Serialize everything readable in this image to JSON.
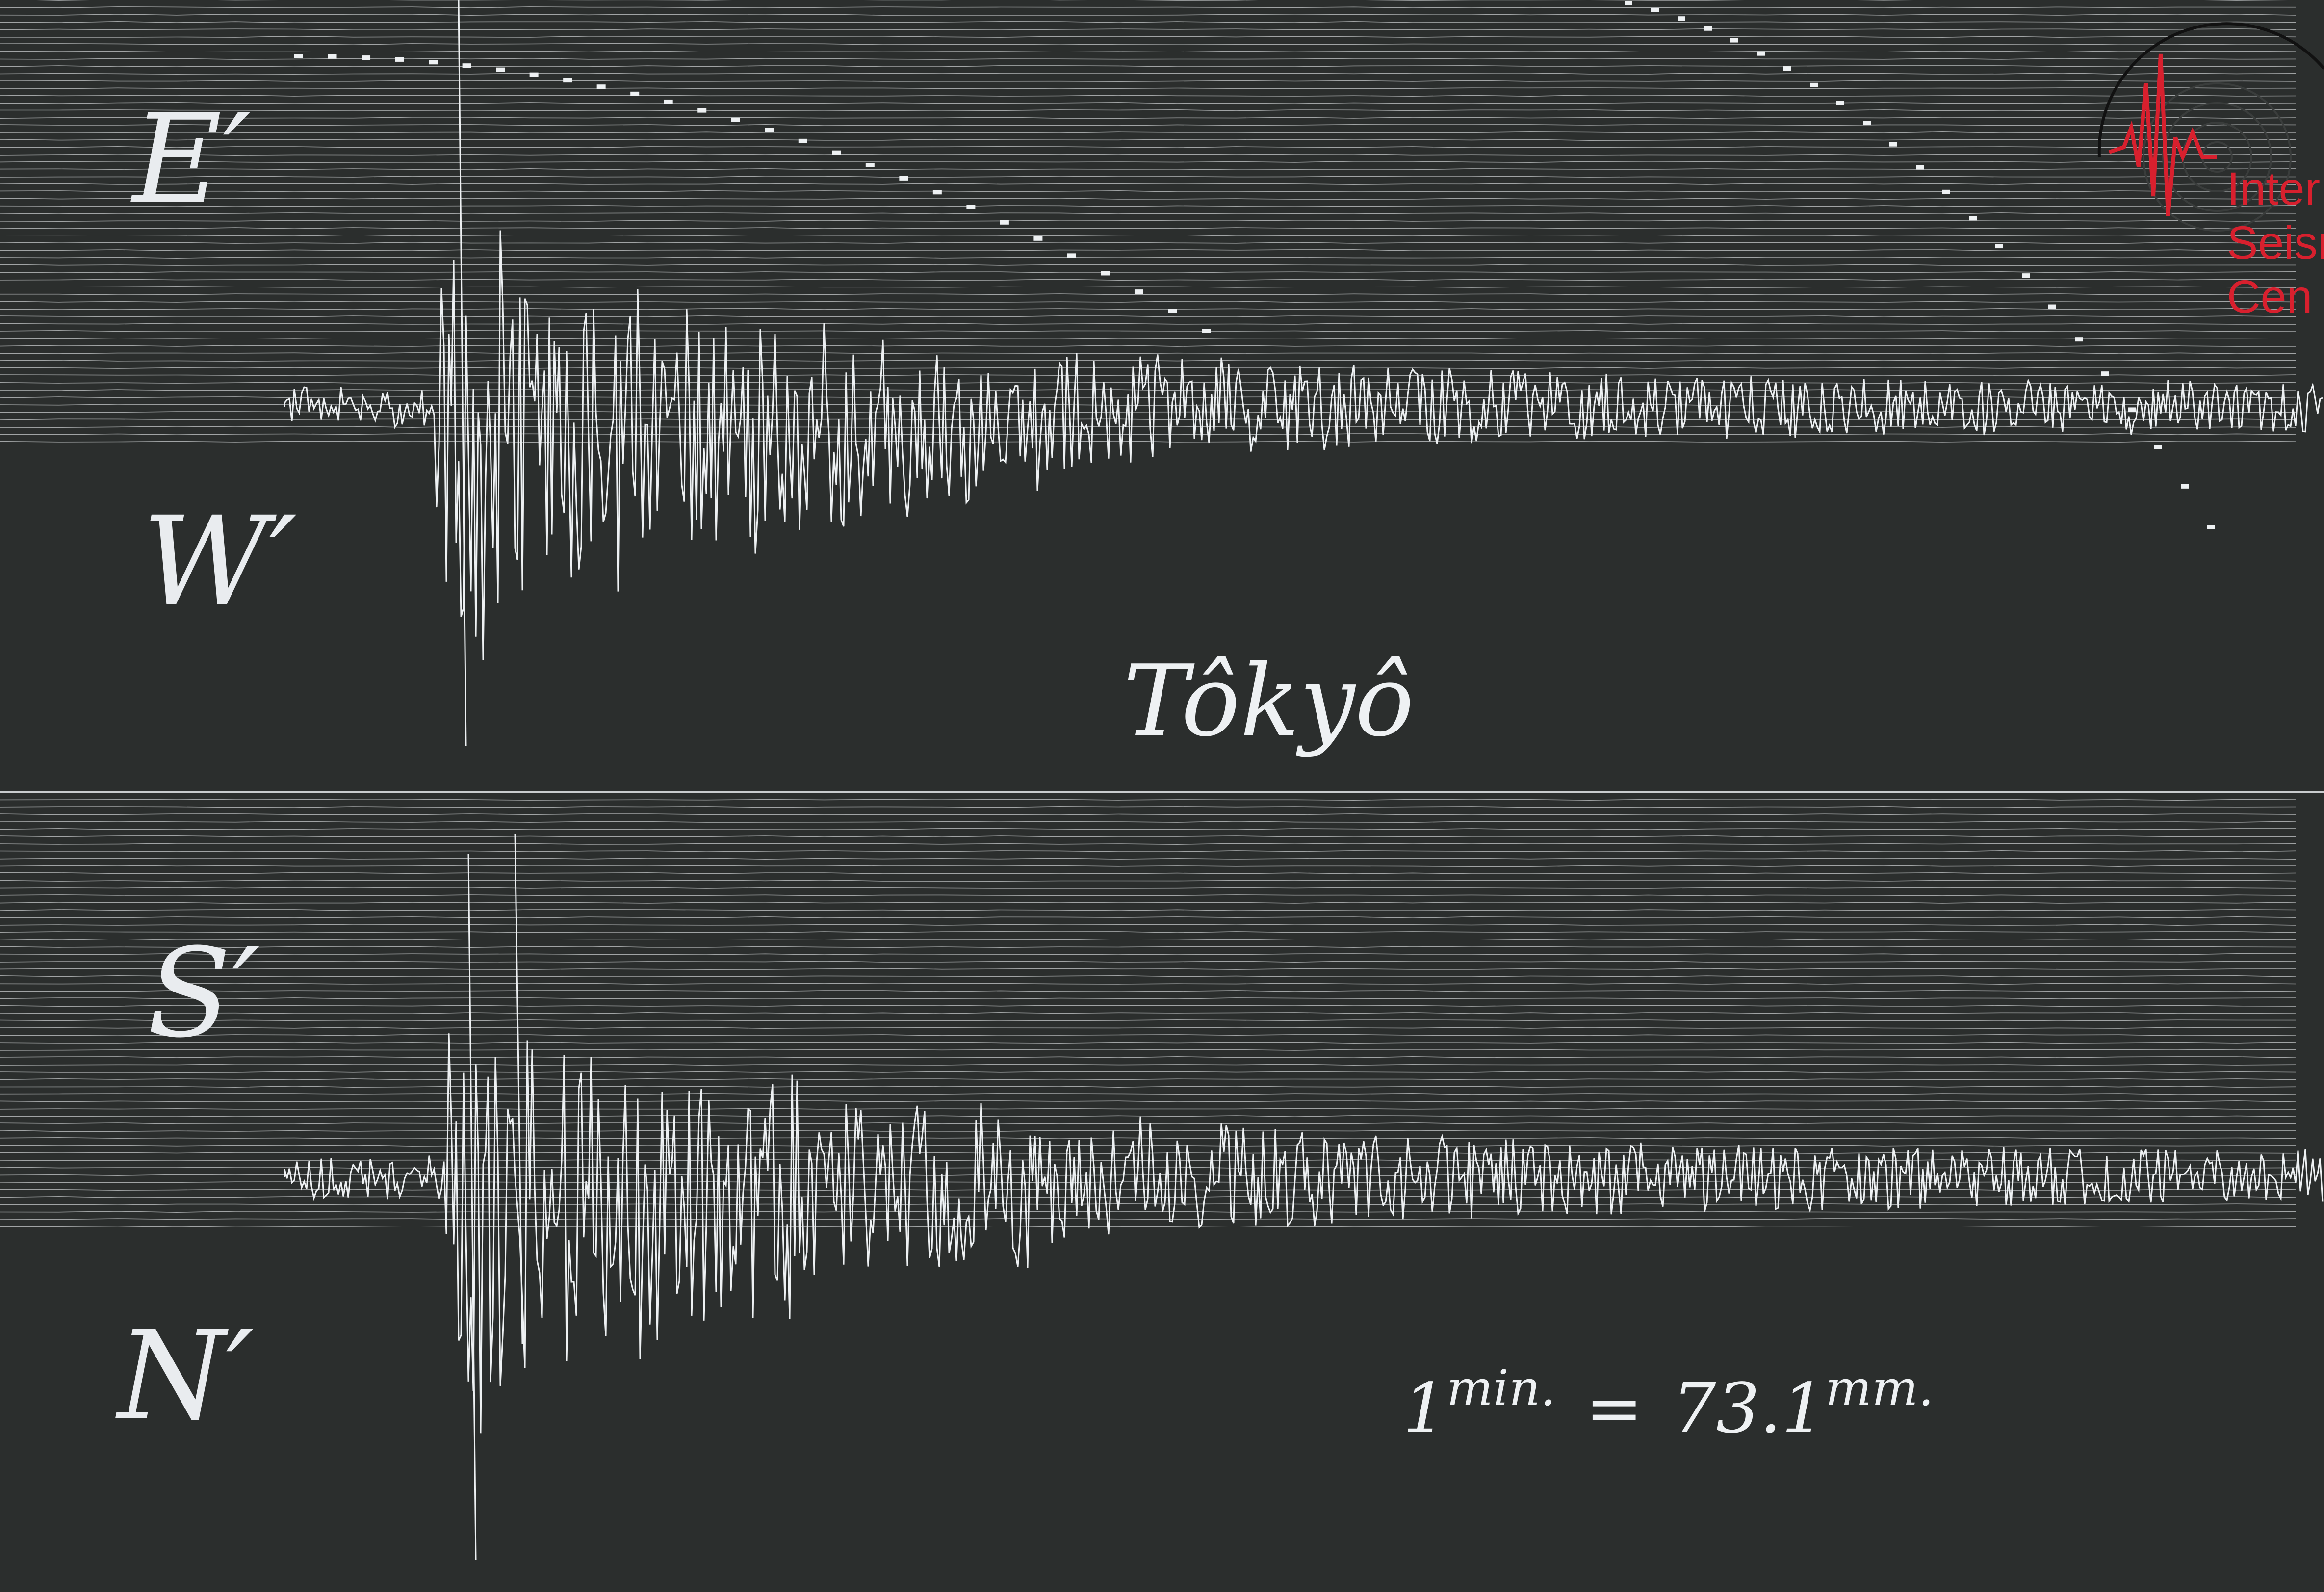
{
  "plate": {
    "station": "Tôkyô",
    "components": {
      "east": "E′",
      "west": "W′",
      "south": "S′",
      "north": "N′"
    },
    "scale": {
      "lhs_value": "1",
      "lhs_unit": "min.",
      "equals": "=",
      "rhs_value": "73.1",
      "rhs_unit": "mm."
    }
  },
  "logo": {
    "icon": "seismogram-circle-icon",
    "color": "#d8202e",
    "lines": [
      "Inter",
      "Seism",
      "Cen"
    ]
  },
  "colors": {
    "background": "#2b2e2d",
    "trace": "#eef1f3",
    "paper_lines": "#c9ccce"
  }
}
